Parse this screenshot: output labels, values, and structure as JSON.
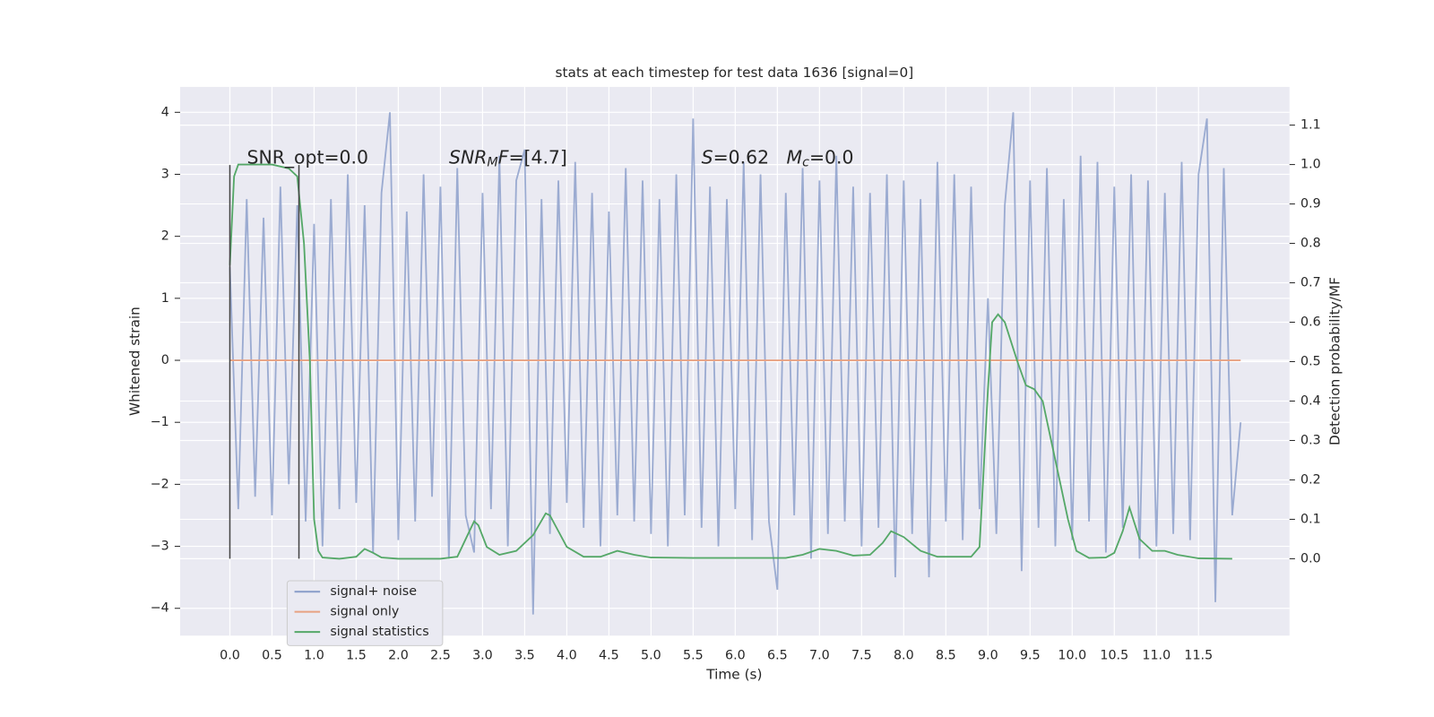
{
  "chart_data": {
    "type": "line",
    "title": "stats at each timestep for test data 1636 [signal=0]",
    "xlabel": "Time (s)",
    "ylabel": "Whitened strain",
    "y2label": "Detection probability/MF",
    "xlim": [
      -0.59,
      12.58
    ],
    "ylim": [
      -4.44,
      4.41
    ],
    "y2lim": [
      -0.195,
      1.197
    ],
    "xticks": [
      {
        "value": 0,
        "label": "0.0"
      },
      0.5,
      {
        "value": 1,
        "label": "1.0"
      },
      1.5,
      {
        "value": 2,
        "label": "2.0"
      },
      2.5,
      {
        "value": 3,
        "label": "3.0"
      },
      3.5,
      {
        "value": 4,
        "label": "4.0"
      },
      4.5,
      {
        "value": 5,
        "label": "5.0"
      },
      5.5,
      {
        "value": 6,
        "label": "6.0"
      },
      6.5,
      {
        "value": 7,
        "label": "7.0"
      },
      7.5,
      {
        "value": 8,
        "label": "8.0"
      },
      8.5,
      {
        "value": 9,
        "label": "9.0"
      },
      9.5,
      {
        "value": 10,
        "label": "10.0"
      },
      10.5,
      {
        "value": 11,
        "label": "11.0"
      },
      11.5
    ],
    "yticks": [
      {
        "value": -4,
        "label": "−4"
      },
      {
        "value": -3,
        "label": "−3"
      },
      {
        "value": -2,
        "label": "−2"
      },
      {
        "value": -1,
        "label": "−1"
      },
      0,
      1,
      2,
      3,
      4
    ],
    "y2ticks": [
      {
        "value": 0,
        "label": "0.0"
      },
      0.1,
      0.2,
      0.3,
      0.4,
      0.5,
      0.6,
      0.7,
      0.8,
      0.9,
      {
        "value": 1,
        "label": "1.0"
      },
      1.1
    ],
    "grid": true,
    "legend": "lower left",
    "series": [
      {
        "name": "signal+ noise",
        "color": "#8da0cb",
        "opacity": 0.85,
        "x": [
          0,
          0.1,
          0.2,
          0.3,
          0.4,
          0.5,
          0.6,
          0.7,
          0.8,
          0.9,
          1,
          1.1,
          1.2,
          1.3,
          1.4,
          1.5,
          1.6,
          1.7,
          1.8,
          1.9,
          2,
          2.1,
          2.2,
          2.3,
          2.4,
          2.5,
          2.6,
          2.7,
          2.8,
          2.9,
          3,
          3.1,
          3.2,
          3.3,
          3.4,
          3.5,
          3.6,
          3.7,
          3.8,
          3.9,
          4,
          4.1,
          4.2,
          4.3,
          4.4,
          4.5,
          4.6,
          4.7,
          4.8,
          4.9,
          5,
          5.1,
          5.2,
          5.3,
          5.4,
          5.5,
          5.6,
          5.7,
          5.8,
          5.9,
          6,
          6.1,
          6.2,
          6.3,
          6.4,
          6.5,
          6.6,
          6.7,
          6.8,
          6.9,
          7,
          7.1,
          7.2,
          7.3,
          7.4,
          7.5,
          7.6,
          7.7,
          7.8,
          7.9,
          8,
          8.1,
          8.2,
          8.3,
          8.4,
          8.5,
          8.6,
          8.7,
          8.8,
          8.9,
          9,
          9.1,
          9.2,
          9.3,
          9.4,
          9.5,
          9.6,
          9.7,
          9.8,
          9.9,
          10,
          10.1,
          10.2,
          10.3,
          10.4,
          10.5,
          10.6,
          10.7,
          10.8,
          10.9,
          11,
          11.1,
          11.2,
          11.3,
          11.4,
          11.5,
          11.6,
          11.7,
          11.8,
          11.9,
          12
        ],
        "values": [
          1.5,
          -2.4,
          2.6,
          -2.2,
          2.3,
          -2.5,
          2.8,
          -2.0,
          2.5,
          -2.6,
          2.2,
          -3.0,
          2.6,
          -2.4,
          3.0,
          -2.3,
          2.5,
          -3.1,
          2.7,
          4.0,
          -2.9,
          2.4,
          -2.6,
          3.0,
          -2.2,
          2.8,
          -3.2,
          3.1,
          -2.5,
          -3.1,
          2.7,
          -2.4,
          3.3,
          -3.0,
          2.9,
          3.4,
          -4.1,
          2.6,
          -2.8,
          2.9,
          -2.3,
          3.2,
          -2.7,
          2.7,
          -3.0,
          2.4,
          -2.5,
          3.1,
          -2.6,
          2.9,
          -2.8,
          2.6,
          -3.0,
          3.0,
          -2.5,
          3.9,
          -2.7,
          2.8,
          -3.0,
          2.6,
          -2.4,
          3.2,
          -2.9,
          3.0,
          -2.6,
          -3.7,
          2.7,
          -2.5,
          3.1,
          -3.2,
          2.9,
          -2.8,
          3.3,
          -2.6,
          2.8,
          -3.0,
          2.7,
          -2.7,
          3.0,
          -3.5,
          2.9,
          -2.8,
          2.6,
          -3.5,
          3.2,
          -2.6,
          3.0,
          -2.9,
          2.8,
          -2.4,
          1.0,
          -2.8,
          2.5,
          4.0,
          -3.4,
          2.9,
          -2.7,
          3.1,
          -3.0,
          2.6,
          -2.9,
          3.3,
          -2.6,
          3.2,
          -3.1,
          2.8,
          -2.7,
          3.0,
          -3.2,
          2.9,
          -3.0,
          2.7,
          -2.8,
          3.2,
          -2.9,
          3.0,
          3.9,
          -3.9,
          3.1,
          -2.5,
          -1.0
        ]
      },
      {
        "name": "signal only",
        "color": "#e8a282",
        "x": [
          0,
          12
        ],
        "values": [
          0,
          0
        ]
      },
      {
        "name": "signal statistics",
        "color": "#55a868",
        "axis": "y2",
        "x": [
          0,
          0.05,
          0.1,
          0.3,
          0.5,
          0.7,
          0.8,
          0.88,
          0.95,
          1.0,
          1.05,
          1.1,
          1.3,
          1.5,
          1.6,
          1.7,
          1.8,
          2.0,
          2.5,
          2.7,
          2.8,
          2.9,
          2.95,
          3.05,
          3.2,
          3.4,
          3.6,
          3.75,
          3.8,
          3.9,
          4.0,
          4.2,
          4.4,
          4.6,
          4.8,
          5.0,
          5.5,
          6.0,
          6.6,
          6.8,
          7.0,
          7.2,
          7.4,
          7.6,
          7.75,
          7.85,
          8.0,
          8.2,
          8.4,
          8.8,
          8.9,
          9.0,
          9.05,
          9.12,
          9.2,
          9.35,
          9.45,
          9.55,
          9.65,
          9.8,
          9.95,
          10.05,
          10.2,
          10.4,
          10.5,
          10.6,
          10.68,
          10.8,
          10.95,
          11.1,
          11.25,
          11.5,
          11.9
        ],
        "values": [
          0.745,
          0.97,
          1.0,
          1.0,
          1.0,
          0.99,
          0.97,
          0.8,
          0.5,
          0.1,
          0.02,
          0.003,
          0,
          0.005,
          0.025,
          0.015,
          0.003,
          0,
          0,
          0.005,
          0.05,
          0.095,
          0.085,
          0.03,
          0.01,
          0.02,
          0.06,
          0.115,
          0.11,
          0.07,
          0.03,
          0.005,
          0.005,
          0.02,
          0.01,
          0.003,
          0.002,
          0.002,
          0.002,
          0.01,
          0.025,
          0.02,
          0.008,
          0.01,
          0.04,
          0.07,
          0.055,
          0.02,
          0.005,
          0.005,
          0.03,
          0.43,
          0.6,
          0.62,
          0.6,
          0.5,
          0.44,
          0.43,
          0.4,
          0.25,
          0.1,
          0.02,
          0.002,
          0.003,
          0.015,
          0.07,
          0.13,
          0.05,
          0.02,
          0.02,
          0.01,
          0.001,
          0
        ]
      }
    ],
    "vlines": {
      "x": [
        0,
        0.82
      ],
      "ymin": -3.2,
      "ymax": 3.15,
      "color": "#444444"
    },
    "annotations": [
      {
        "parts": [
          {
            "text": "SNR_opt=0.0"
          }
        ]
      },
      {
        "parts": [
          {
            "text": "SNR",
            "italic": true
          },
          {
            "text": "M",
            "italic": true,
            "sub": true
          },
          {
            "text": "F",
            "italic": true
          },
          {
            "text": "=[4.7]"
          }
        ]
      },
      {
        "parts": [
          {
            "text": "S",
            "italic": true
          },
          {
            "text": "=0.62   "
          },
          {
            "text": "M",
            "italic": true
          },
          {
            "text": "c",
            "italic": true,
            "sub": true
          },
          {
            "text": "=0.0"
          }
        ]
      }
    ]
  }
}
